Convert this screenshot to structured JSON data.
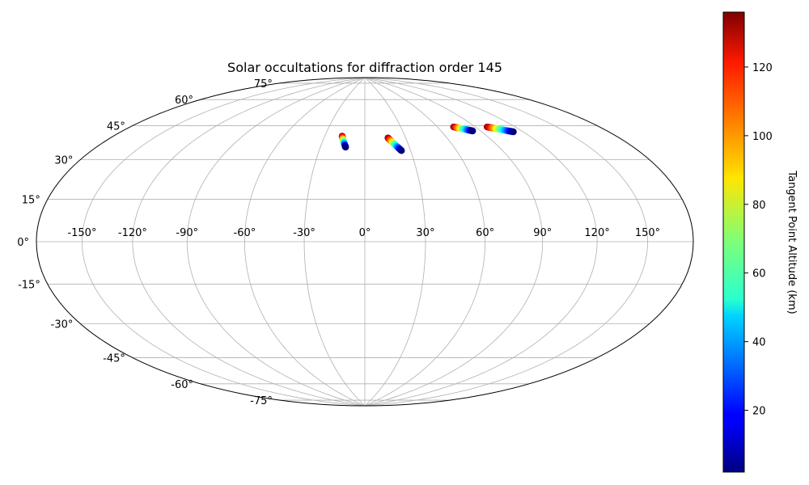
{
  "chart_data": {
    "type": "scatter",
    "projection": "hammer",
    "title": "Solar occultations for diffraction order 145",
    "longitude_ticks": [
      -150,
      -120,
      -90,
      -60,
      -30,
      0,
      30,
      60,
      90,
      120,
      150
    ],
    "longitude_tick_labels": [
      "-150°",
      "-120°",
      "-90°",
      "-60°",
      "-30°",
      "0°",
      "30°",
      "60°",
      "90°",
      "120°",
      "150°"
    ],
    "latitude_ticks": [
      -75,
      -60,
      -45,
      -30,
      -15,
      0,
      15,
      30,
      45,
      60,
      75
    ],
    "latitude_tick_labels": [
      "-75°",
      "-60°",
      "-45°",
      "-30°",
      "-15°",
      "0°",
      "15°",
      "30°",
      "45°",
      "60°",
      "75°"
    ],
    "grid": true,
    "series": [
      {
        "lon_start": -17,
        "lat_start": 54,
        "lon_end": -13,
        "lat_end": 48,
        "alt_start": 135,
        "alt_end": 2
      },
      {
        "lon_start": 17,
        "lat_start": 53,
        "lon_end": 24,
        "lat_end": 46,
        "alt_start": 135,
        "alt_end": 2
      },
      {
        "lon_start": 73,
        "lat_start": 57,
        "lon_end": 84,
        "lat_end": 54,
        "alt_start": 135,
        "alt_end": 2
      },
      {
        "lon_start": 99,
        "lat_start": 55,
        "lon_end": 113,
        "lat_end": 51,
        "alt_start": 135,
        "alt_end": 2
      }
    ],
    "colorbar": {
      "label": "Tangent Point Altitude (km)",
      "colormap": "jet",
      "vmin": 2,
      "vmax": 136,
      "ticks": [
        20,
        40,
        60,
        80,
        100,
        120
      ],
      "tick_labels": [
        "20",
        "40",
        "60",
        "80",
        "100",
        "120"
      ]
    }
  }
}
